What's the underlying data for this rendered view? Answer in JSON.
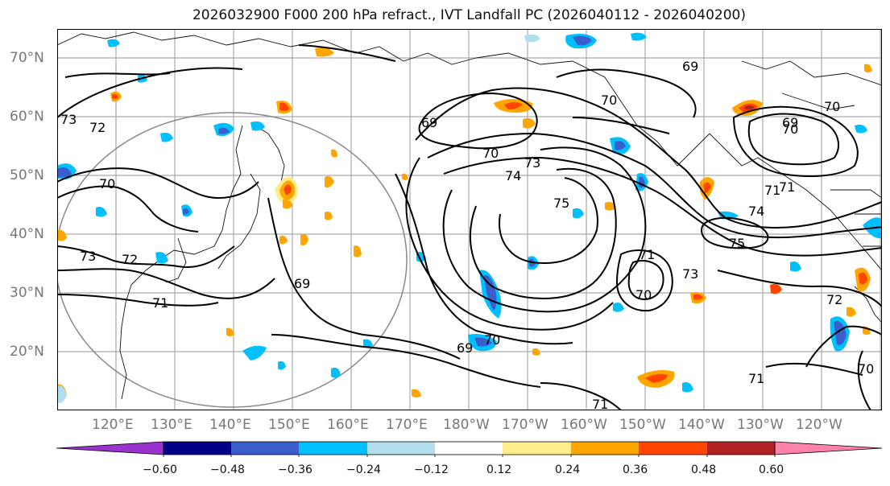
{
  "title": "2026032900 F000 200 hPa refract., IVT Landfall PC (2026040112 - 2026040200)",
  "lat_labels": [
    "70°N",
    "60°N",
    "50°N",
    "40°N",
    "30°N",
    "20°N"
  ],
  "lon_labels": [
    "120°E",
    "130°E",
    "140°E",
    "150°E",
    "160°E",
    "170°E",
    "180°W",
    "170°W",
    "160°W",
    "150°W",
    "140°W",
    "130°W",
    "120°W"
  ],
  "colorbar": {
    "colors": [
      "#9a32cd",
      "#00008b",
      "#3a5fcd",
      "#00bfff",
      "#b2dfee",
      "#ffffff",
      "#ffec8b",
      "#ffa500",
      "#ff4500",
      "#b22222",
      "#ff82ab"
    ],
    "tick_labels": [
      "−0.60",
      "−0.48",
      "−0.36",
      "−0.24",
      "−0.12",
      "0.12",
      "0.24",
      "0.36",
      "0.48",
      "0.60"
    ]
  },
  "contour_labels": [
    {
      "text": "73"
    },
    {
      "text": "72"
    },
    {
      "text": "70"
    },
    {
      "text": "73"
    },
    {
      "text": "72"
    },
    {
      "text": "71"
    },
    {
      "text": "69"
    },
    {
      "text": "69"
    },
    {
      "text": "70"
    },
    {
      "text": "74"
    },
    {
      "text": "73"
    },
    {
      "text": "75"
    },
    {
      "text": "70"
    },
    {
      "text": "69"
    },
    {
      "text": "70"
    },
    {
      "text": "69"
    },
    {
      "text": "70"
    },
    {
      "text": "71"
    },
    {
      "text": "73"
    },
    {
      "text": "70"
    },
    {
      "text": "75"
    },
    {
      "text": "74"
    },
    {
      "text": "71"
    },
    {
      "text": "70"
    },
    {
      "text": "69"
    },
    {
      "text": "71"
    },
    {
      "text": "72"
    },
    {
      "text": "70"
    },
    {
      "text": "71"
    },
    {
      "text": "71"
    }
  ]
}
